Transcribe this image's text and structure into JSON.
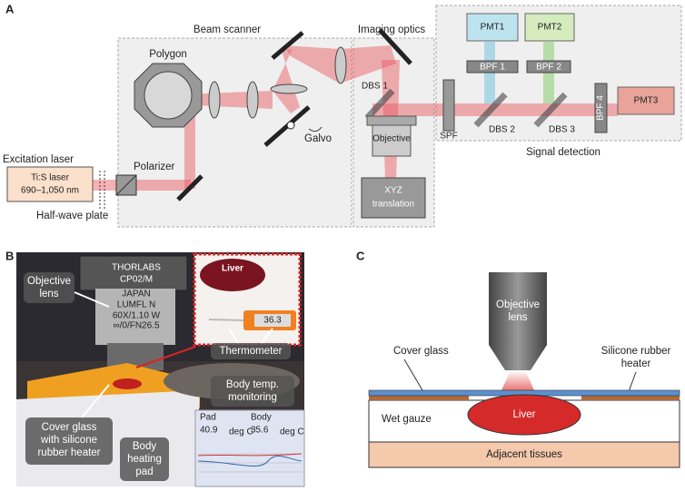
{
  "panel_a": {
    "label": "A",
    "beam_scanner": "Beam scanner",
    "imaging_optics": "Imaging optics",
    "signal_detection": "Signal detection",
    "polygon": "Polygon",
    "galvo": "Galvo",
    "excitation_laser": "Excitation laser",
    "laser": [
      "Ti:S laser",
      "690–1,050 nm"
    ],
    "polarizer": "Polarizer",
    "half_wave_plate": "Half-wave plate",
    "dbs1": "DBS 1",
    "objective": "Objective",
    "xyz": [
      "XYZ",
      "translation"
    ],
    "spf": "SPF",
    "pmt1": "PMT1",
    "pmt2": "PMT2",
    "pmt3": "PMT3",
    "bpf1": "BPF 1",
    "bpf2": "BPF 2",
    "bpf4": "BPF 4",
    "dbs2": "DBS 2",
    "dbs3": "DBS 3"
  },
  "panel_b": {
    "label": "B",
    "objective_lens": [
      "Objective",
      "lens"
    ],
    "liver": "Liver",
    "thermometer": "Thermometer",
    "thermometer_reading": "36.3",
    "cover_glass": [
      "Cover glass",
      "with silicone",
      "rubber heater"
    ],
    "heating_pad": [
      "Body",
      "heating",
      "pad"
    ],
    "monitoring": [
      "Body temp.",
      "monitoring"
    ],
    "monitor": {
      "pad_label": "Pad",
      "pad_value": "40.9",
      "body_label": "Body",
      "body_value": "35.6",
      "unit": "deg C"
    },
    "lens_text": [
      "THORLABS",
      "CP02/M",
      "JAPAN",
      "LUMFL N",
      "60X/1.10 W",
      "∞/0/FN26.5"
    ]
  },
  "panel_c": {
    "label": "C",
    "objective_lens": [
      "Objective",
      "lens"
    ],
    "cover_glass": "Cover glass",
    "heater": [
      "Silicone rubber",
      "heater"
    ],
    "wet_gauze": "Wet gauze",
    "liver": "Liver",
    "adjacent_tissues": "Adjacent tissues"
  }
}
